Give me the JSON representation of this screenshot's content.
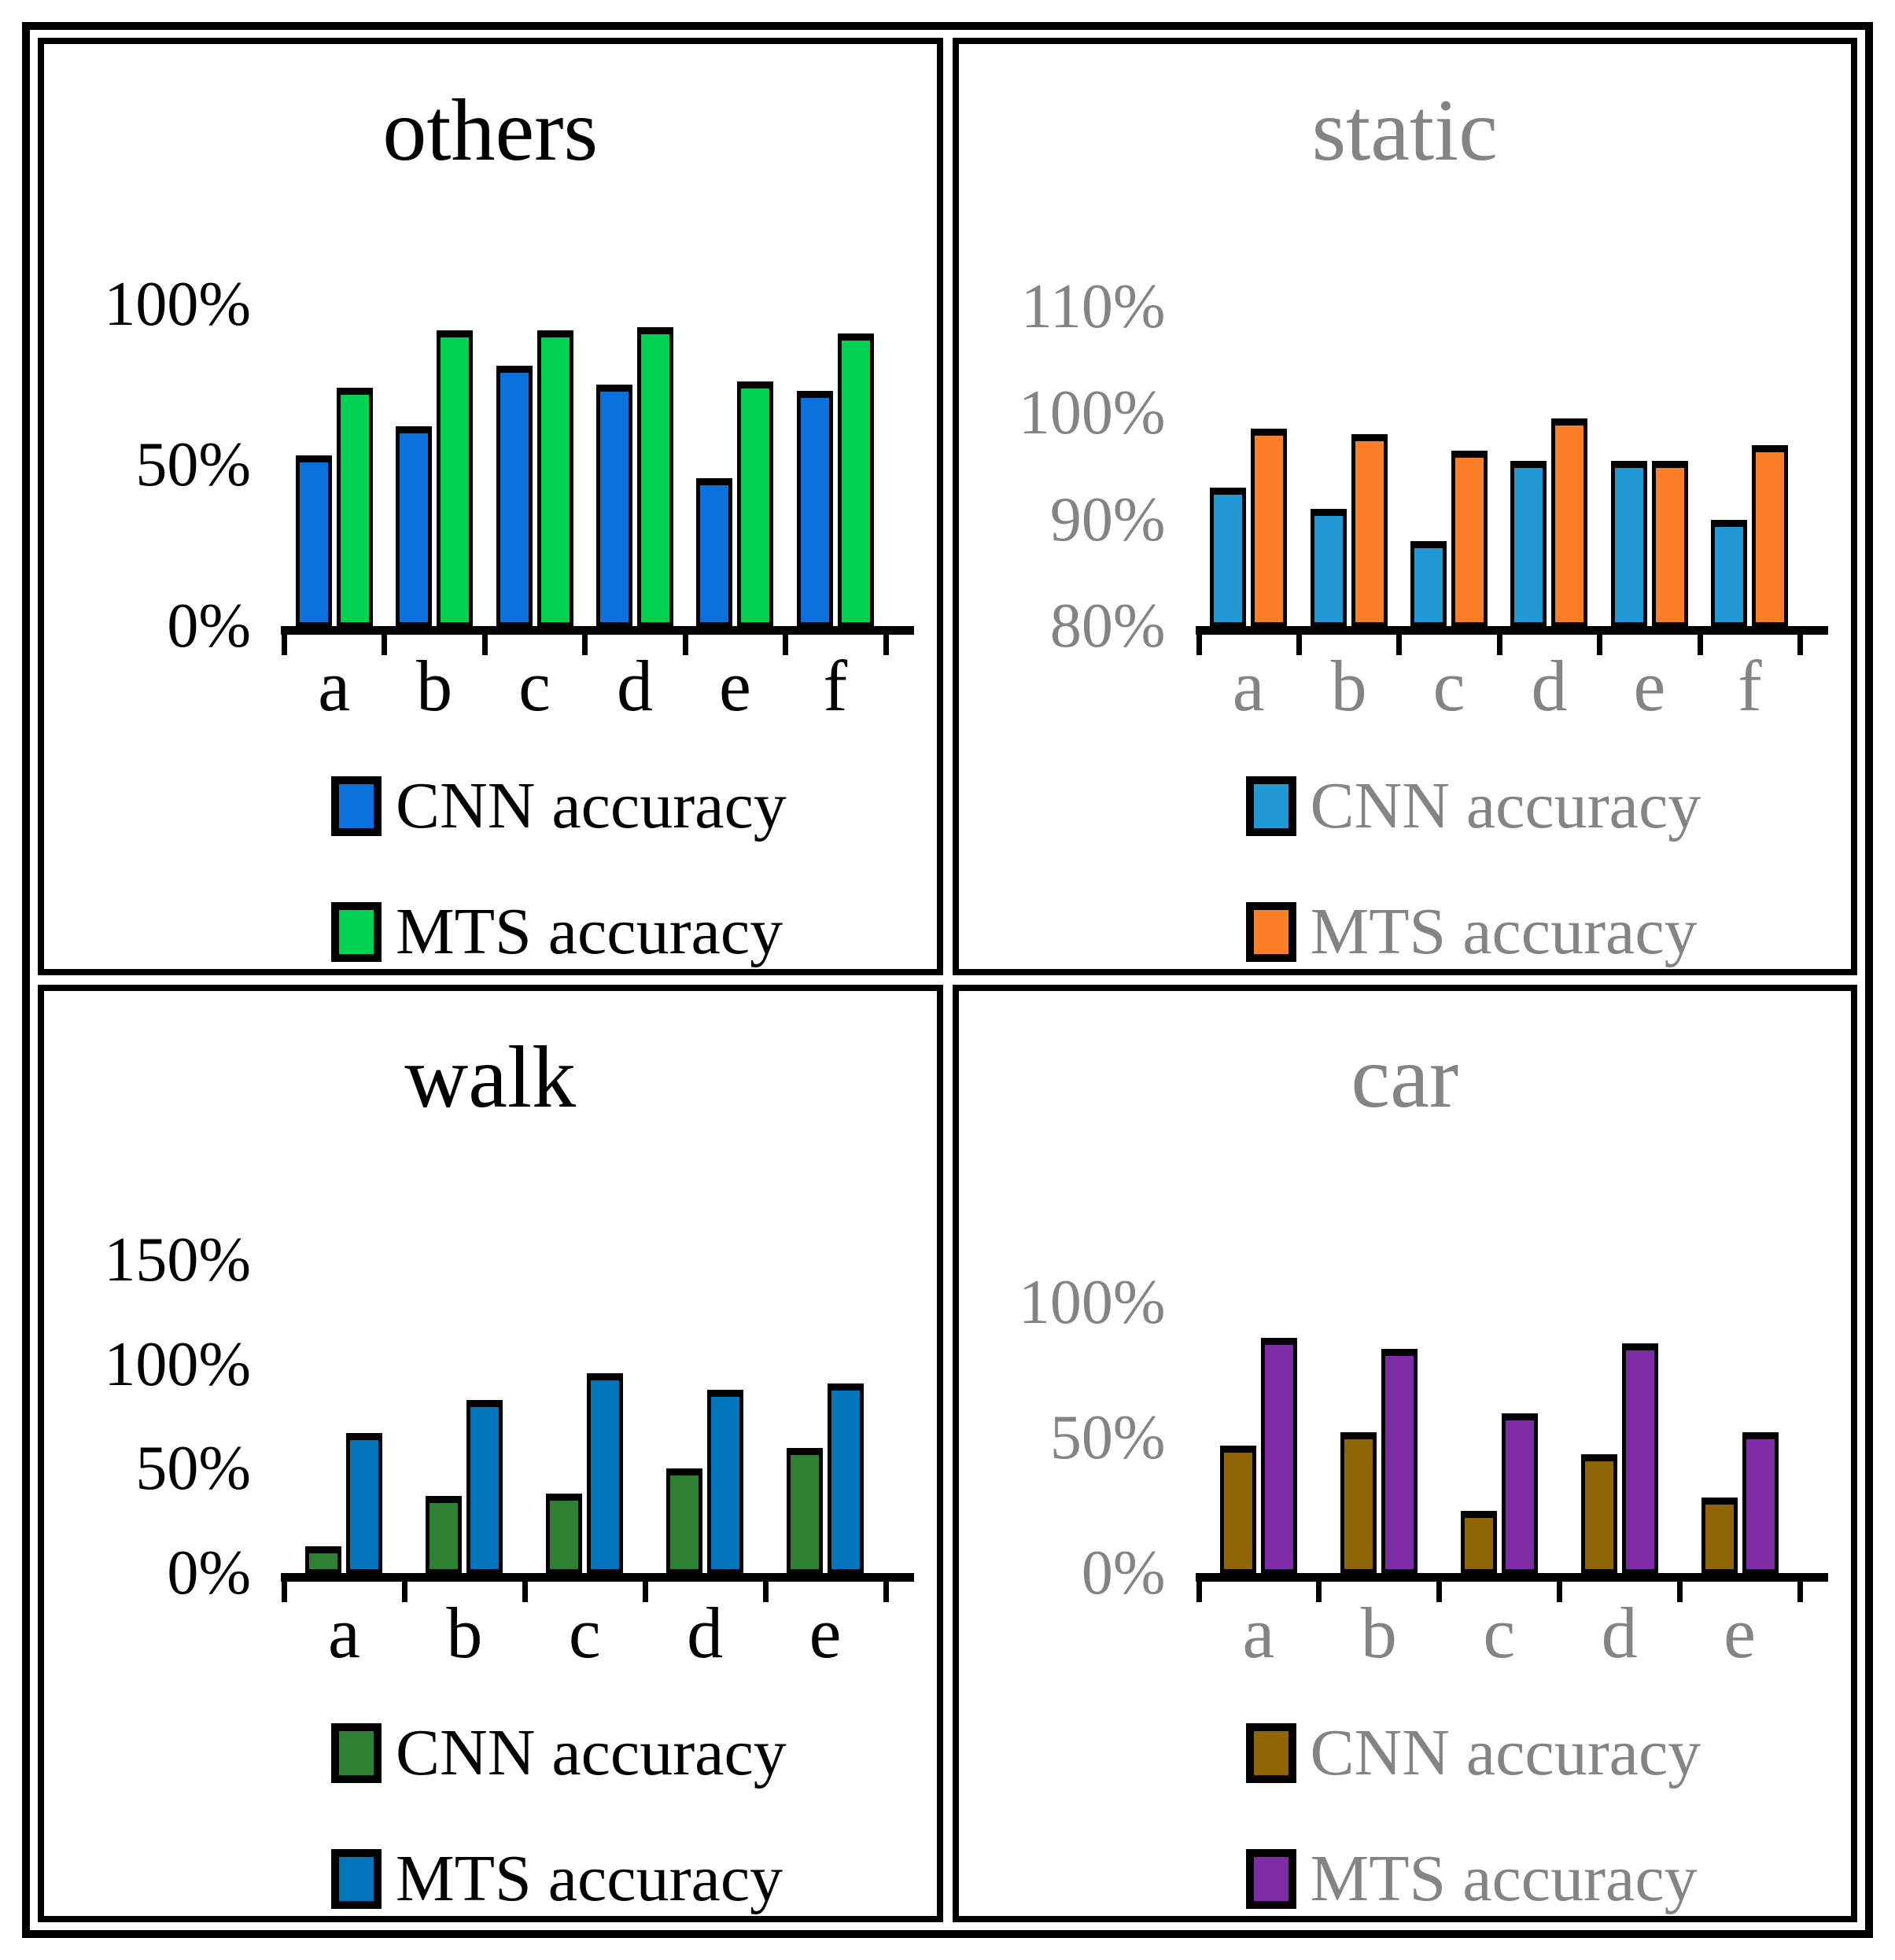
{
  "figure": {
    "description": "2x2 grid of grouped bar charts comparing CNN accuracy and MTS accuracy"
  },
  "chart_data": [
    {
      "id": "others",
      "type": "bar",
      "title": "others",
      "text_color": "#000000",
      "categories": [
        "a",
        "b",
        "c",
        "d",
        "e",
        "f"
      ],
      "series": [
        {
          "name": "CNN accuracy",
          "color": "#0a71dd",
          "values": [
            53,
            62,
            81,
            75,
            46,
            73
          ]
        },
        {
          "name": "MTS accuracy",
          "color": "#00d150",
          "values": [
            74,
            92,
            92,
            93,
            76,
            91
          ]
        }
      ],
      "y_ticks": [
        {
          "label": "100%",
          "value": 100
        },
        {
          "label": "50%",
          "value": 50
        },
        {
          "label": "0%",
          "value": 0
        }
      ],
      "ylim": [
        0,
        110
      ],
      "grid": false,
      "legend_position": "bottom"
    },
    {
      "id": "static",
      "type": "bar",
      "title": "static",
      "text_color": "#848484",
      "categories": [
        "a",
        "b",
        "c",
        "d",
        "e",
        "f"
      ],
      "series": [
        {
          "name": "CNN accuracy",
          "color": "#2099d5",
          "values": [
            93,
            91,
            88,
            95.5,
            95.5,
            90
          ]
        },
        {
          "name": "MTS accuracy",
          "color": "#fc7e26",
          "values": [
            98.5,
            98,
            96.5,
            99.5,
            95.5,
            97
          ]
        }
      ],
      "y_ticks": [
        {
          "label": "110%",
          "value": 110
        },
        {
          "label": "100%",
          "value": 100
        },
        {
          "label": "90%",
          "value": 90
        },
        {
          "label": "80%",
          "value": 80
        }
      ],
      "ylim": [
        80,
        113
      ],
      "grid": false,
      "legend_position": "bottom"
    },
    {
      "id": "walk",
      "type": "bar",
      "title": "walk",
      "text_color": "#000000",
      "categories": [
        "a",
        "b",
        "c",
        "d",
        "e"
      ],
      "series": [
        {
          "name": "CNN accuracy",
          "color": "#2e8132",
          "values": [
            13,
            37,
            38,
            50,
            60
          ]
        },
        {
          "name": "MTS accuracy",
          "color": "#0175bc",
          "values": [
            67,
            83,
            96,
            88,
            91
          ]
        }
      ],
      "y_ticks": [
        {
          "label": "150%",
          "value": 150
        },
        {
          "label": "100%",
          "value": 100
        },
        {
          "label": "50%",
          "value": 50
        },
        {
          "label": "0%",
          "value": 0
        }
      ],
      "ylim": [
        0,
        166
      ],
      "grid": false,
      "legend_position": "bottom"
    },
    {
      "id": "car",
      "type": "bar",
      "title": "car",
      "text_color": "#848484",
      "categories": [
        "a",
        "b",
        "c",
        "d",
        "e"
      ],
      "series": [
        {
          "name": "CNN accuracy",
          "color": "#8f6505",
          "values": [
            47,
            52,
            23,
            44,
            28
          ]
        },
        {
          "name": "MTS accuracy",
          "color": "#7d2ca5",
          "values": [
            87,
            83,
            59,
            85,
            52
          ]
        }
      ],
      "y_ticks": [
        {
          "label": "100%",
          "value": 100
        },
        {
          "label": "50%",
          "value": 50
        },
        {
          "label": "0%",
          "value": 0
        }
      ],
      "ylim": [
        0,
        114
      ],
      "grid": false,
      "legend_position": "bottom"
    }
  ]
}
